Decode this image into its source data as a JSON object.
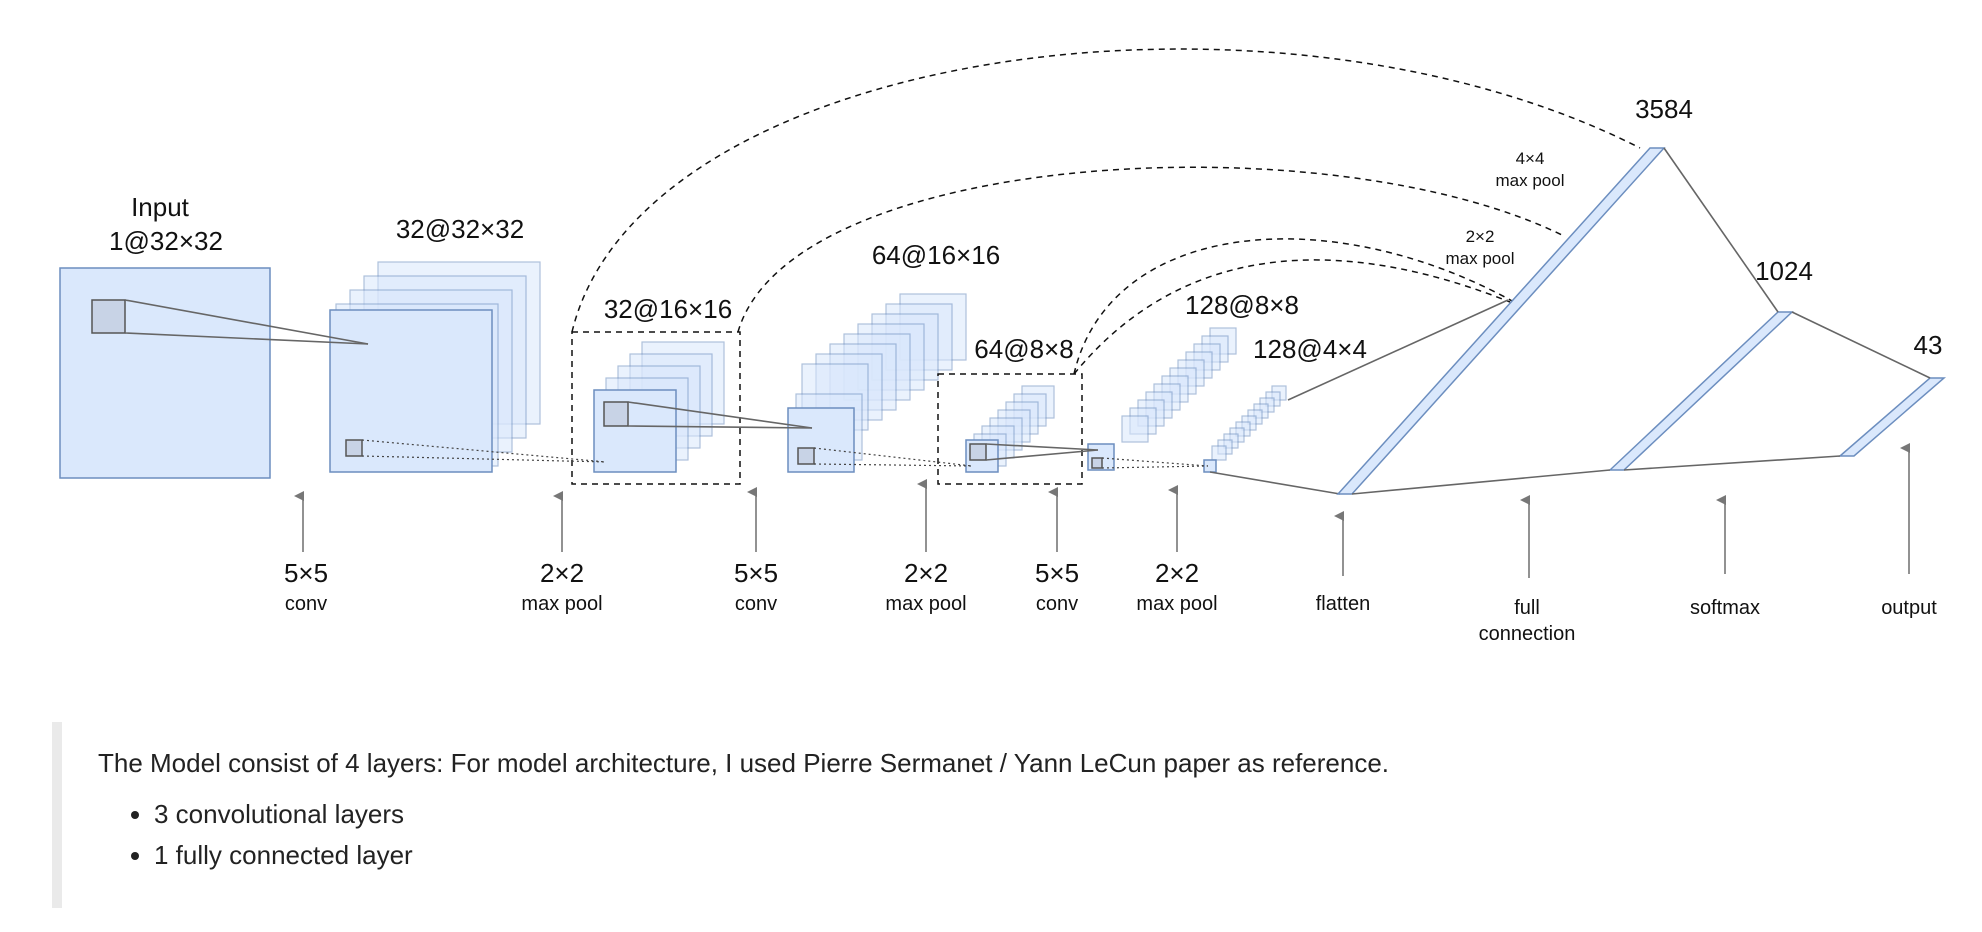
{
  "diagram": {
    "stages": [
      {
        "label": "1@32×32"
      },
      {
        "label": "32@32×32"
      },
      {
        "label": "32@16×16"
      },
      {
        "label": "64@16×16"
      },
      {
        "label": "64@8×8"
      },
      {
        "label": "128@8×8"
      },
      {
        "label": "128@4×4"
      },
      {
        "label": "3584"
      },
      {
        "label": "1024"
      },
      {
        "label": "43"
      }
    ],
    "input_title": "Input",
    "skip_labels": [
      {
        "size": "4×4",
        "op": "max pool"
      },
      {
        "size": "2×2",
        "op": "max pool"
      }
    ],
    "operations": [
      {
        "size": "5×5",
        "name": "conv"
      },
      {
        "size": "2×2",
        "name": "max pool"
      },
      {
        "size": "5×5",
        "name": "conv"
      },
      {
        "size": "2×2",
        "name": "max pool"
      },
      {
        "size": "5×5",
        "name": "conv"
      },
      {
        "size": "2×2",
        "name": "max pool"
      },
      {
        "size": "",
        "name": "flatten"
      },
      {
        "size": "",
        "name": "full",
        "name2": "connection"
      },
      {
        "size": "",
        "name": "softmax"
      },
      {
        "size": "",
        "name": "output"
      }
    ]
  },
  "description": {
    "text": "The Model consist of 4 layers: For model architecture, I used Pierre Sermanet / Yann LeCun paper as reference.",
    "bullets": [
      "3 convolutional layers",
      "1 fully connected layer"
    ]
  },
  "colors": {
    "map_fill": "#dae8fc",
    "map_stroke": "#6c8ebf",
    "kernel_fill": "#c8d3e6"
  }
}
